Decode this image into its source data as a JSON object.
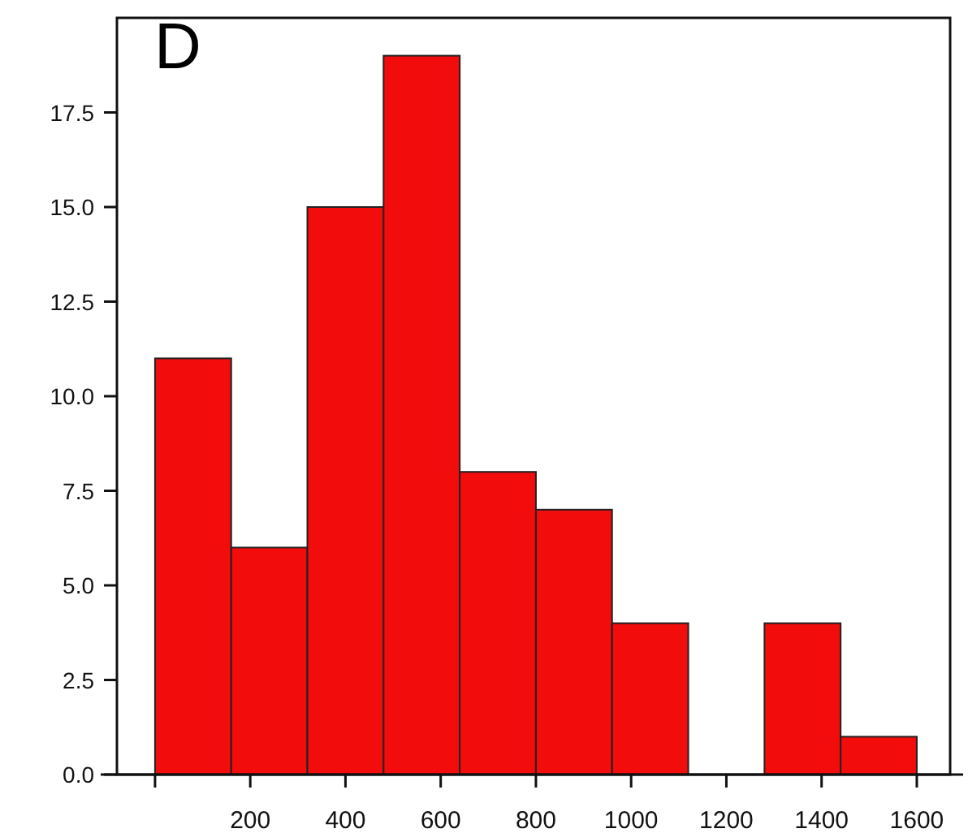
{
  "chart_data": {
    "type": "histogram",
    "title": "D",
    "bins": [
      0,
      160,
      320,
      480,
      640,
      800,
      960,
      1120,
      1280,
      1440,
      1600
    ],
    "values": [
      11,
      6,
      15,
      19,
      8,
      7,
      4,
      0,
      4,
      1
    ],
    "color": "#f20c0c",
    "xlim": [
      -80,
      1670
    ],
    "ylim": [
      0,
      20
    ],
    "xticks": [
      {
        "value": 0,
        "label": null
      },
      200,
      400,
      600,
      800,
      1000,
      1200,
      1400,
      1600
    ],
    "yticks": [
      {
        "value": 0,
        "label": "0.0"
      },
      {
        "value": 2.5,
        "label": "2.5"
      },
      {
        "value": 5,
        "label": "5.0"
      },
      {
        "value": 7.5,
        "label": "7.5"
      },
      {
        "value": 10,
        "label": "10.0"
      },
      {
        "value": 12.5,
        "label": "12.5"
      },
      {
        "value": 15,
        "label": "15.0"
      },
      {
        "value": 17.5,
        "label": "17.5"
      }
    ],
    "grid": false
  }
}
